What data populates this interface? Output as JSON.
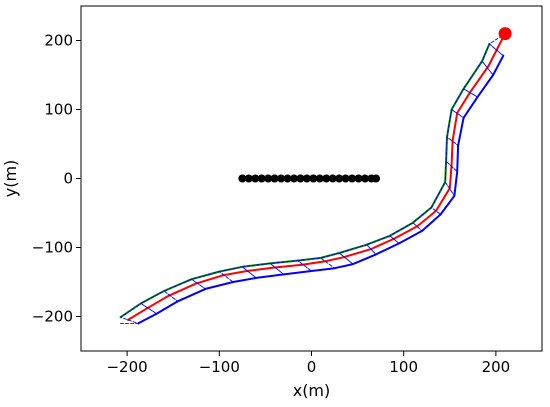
{
  "chart_data": {
    "type": "line",
    "title": "",
    "xlabel": "x(m)",
    "ylabel": "y(m)",
    "xlim": [
      -250,
      250
    ],
    "ylim": [
      -250,
      250
    ],
    "xticks": [
      -200,
      -100,
      0,
      100,
      200
    ],
    "yticks": [
      -200,
      -100,
      0,
      100,
      200
    ],
    "xtick_labels": [
      "−200",
      "−100",
      "0",
      "100",
      "200"
    ],
    "ytick_labels": [
      "−200",
      "−100",
      "0",
      "100",
      "200"
    ],
    "grid": false,
    "legend": "none",
    "series": [
      {
        "color": "#008000",
        "style": "solid",
        "points": [
          [
            -207,
            -201
          ],
          [
            -185,
            -181
          ],
          [
            -160,
            -163
          ],
          [
            -130,
            -146
          ],
          [
            -100,
            -135
          ],
          [
            -75,
            -128
          ],
          [
            -45,
            -123
          ],
          [
            -15,
            -119
          ],
          [
            10,
            -115
          ],
          [
            30,
            -108
          ],
          [
            60,
            -96
          ],
          [
            85,
            -83
          ],
          [
            110,
            -64
          ],
          [
            130,
            -42
          ],
          [
            145,
            -5
          ],
          [
            146,
            25
          ],
          [
            147,
            60
          ],
          [
            152,
            100
          ],
          [
            165,
            130
          ],
          [
            185,
            170
          ],
          [
            193,
            195
          ]
        ]
      },
      {
        "color": "#ff0000",
        "style": "solid",
        "points": [
          [
            -199,
            -205
          ],
          [
            -178,
            -188
          ],
          [
            -155,
            -170
          ],
          [
            -125,
            -152
          ],
          [
            -95,
            -140
          ],
          [
            -70,
            -134
          ],
          [
            -40,
            -129
          ],
          [
            -10,
            -125
          ],
          [
            15,
            -120
          ],
          [
            35,
            -114
          ],
          [
            65,
            -102
          ],
          [
            90,
            -87
          ],
          [
            115,
            -69
          ],
          [
            135,
            -47
          ],
          [
            150,
            -14
          ],
          [
            152,
            20
          ],
          [
            153,
            55
          ],
          [
            158,
            95
          ],
          [
            172,
            125
          ],
          [
            192,
            163
          ],
          [
            203,
            192
          ],
          [
            210,
            210
          ]
        ]
      },
      {
        "color": "#0000ff",
        "style": "solid",
        "points": [
          [
            -188,
            -210
          ],
          [
            -168,
            -196
          ],
          [
            -145,
            -178
          ],
          [
            -115,
            -160
          ],
          [
            -85,
            -150
          ],
          [
            -60,
            -144
          ],
          [
            -30,
            -139
          ],
          [
            0,
            -134
          ],
          [
            25,
            -130
          ],
          [
            45,
            -124
          ],
          [
            70,
            -110
          ],
          [
            95,
            -94
          ],
          [
            120,
            -76
          ],
          [
            140,
            -52
          ],
          [
            155,
            -25
          ],
          [
            158,
            10
          ],
          [
            159,
            48
          ],
          [
            165,
            88
          ],
          [
            180,
            118
          ],
          [
            197,
            150
          ],
          [
            208,
            178
          ]
        ]
      },
      {
        "color": "#0000ff",
        "style": "dashed",
        "points": [
          [
            -207,
            -210
          ],
          [
            -188,
            -210
          ],
          [
            -207,
            -201
          ],
          [
            -185,
            -181
          ],
          [
            -168,
            -196
          ],
          [
            -185,
            -181
          ],
          [
            -160,
            -163
          ],
          [
            -145,
            -178
          ],
          [
            -160,
            -163
          ],
          [
            -130,
            -146
          ],
          [
            -115,
            -160
          ],
          [
            -130,
            -146
          ],
          [
            -100,
            -135
          ],
          [
            -85,
            -150
          ],
          [
            -100,
            -135
          ],
          [
            -75,
            -128
          ],
          [
            -60,
            -144
          ],
          [
            -75,
            -128
          ],
          [
            -45,
            -123
          ],
          [
            -30,
            -139
          ],
          [
            -45,
            -123
          ],
          [
            -15,
            -119
          ],
          [
            0,
            -134
          ],
          [
            -15,
            -119
          ],
          [
            10,
            -115
          ],
          [
            25,
            -130
          ],
          [
            10,
            -115
          ],
          [
            30,
            -108
          ],
          [
            45,
            -124
          ],
          [
            30,
            -108
          ],
          [
            60,
            -96
          ],
          [
            70,
            -110
          ],
          [
            60,
            -96
          ],
          [
            85,
            -83
          ],
          [
            95,
            -94
          ],
          [
            85,
            -83
          ],
          [
            110,
            -64
          ],
          [
            120,
            -76
          ],
          [
            110,
            -64
          ],
          [
            130,
            -42
          ],
          [
            140,
            -52
          ],
          [
            130,
            -42
          ],
          [
            145,
            -5
          ],
          [
            155,
            -25
          ],
          [
            145,
            -5
          ],
          [
            146,
            25
          ],
          [
            158,
            10
          ],
          [
            146,
            25
          ],
          [
            147,
            60
          ],
          [
            159,
            48
          ],
          [
            147,
            60
          ],
          [
            152,
            100
          ],
          [
            165,
            88
          ],
          [
            152,
            100
          ],
          [
            165,
            130
          ],
          [
            180,
            118
          ],
          [
            165,
            130
          ],
          [
            185,
            170
          ],
          [
            197,
            150
          ],
          [
            185,
            170
          ],
          [
            193,
            195
          ],
          [
            208,
            178
          ],
          [
            193,
            195
          ],
          [
            210,
            210
          ]
        ]
      },
      {
        "color": "#000000",
        "style": "markers",
        "points": [
          [
            -75,
            0
          ],
          [
            -68,
            0
          ],
          [
            -61,
            0
          ],
          [
            -54,
            0
          ],
          [
            -47,
            0
          ],
          [
            -40,
            0
          ],
          [
            -33,
            0
          ],
          [
            -26,
            0
          ],
          [
            -19,
            0
          ],
          [
            -12,
            0
          ],
          [
            -5,
            0
          ],
          [
            2,
            0
          ],
          [
            9,
            0
          ],
          [
            16,
            0
          ],
          [
            23,
            0
          ],
          [
            30,
            0
          ],
          [
            37,
            0
          ],
          [
            44,
            0
          ],
          [
            51,
            0
          ],
          [
            58,
            0
          ],
          [
            65,
            0
          ],
          [
            70,
            0
          ]
        ]
      },
      {
        "color": "#ff0000",
        "style": "endpoint",
        "points": [
          [
            210,
            210
          ]
        ]
      }
    ]
  }
}
